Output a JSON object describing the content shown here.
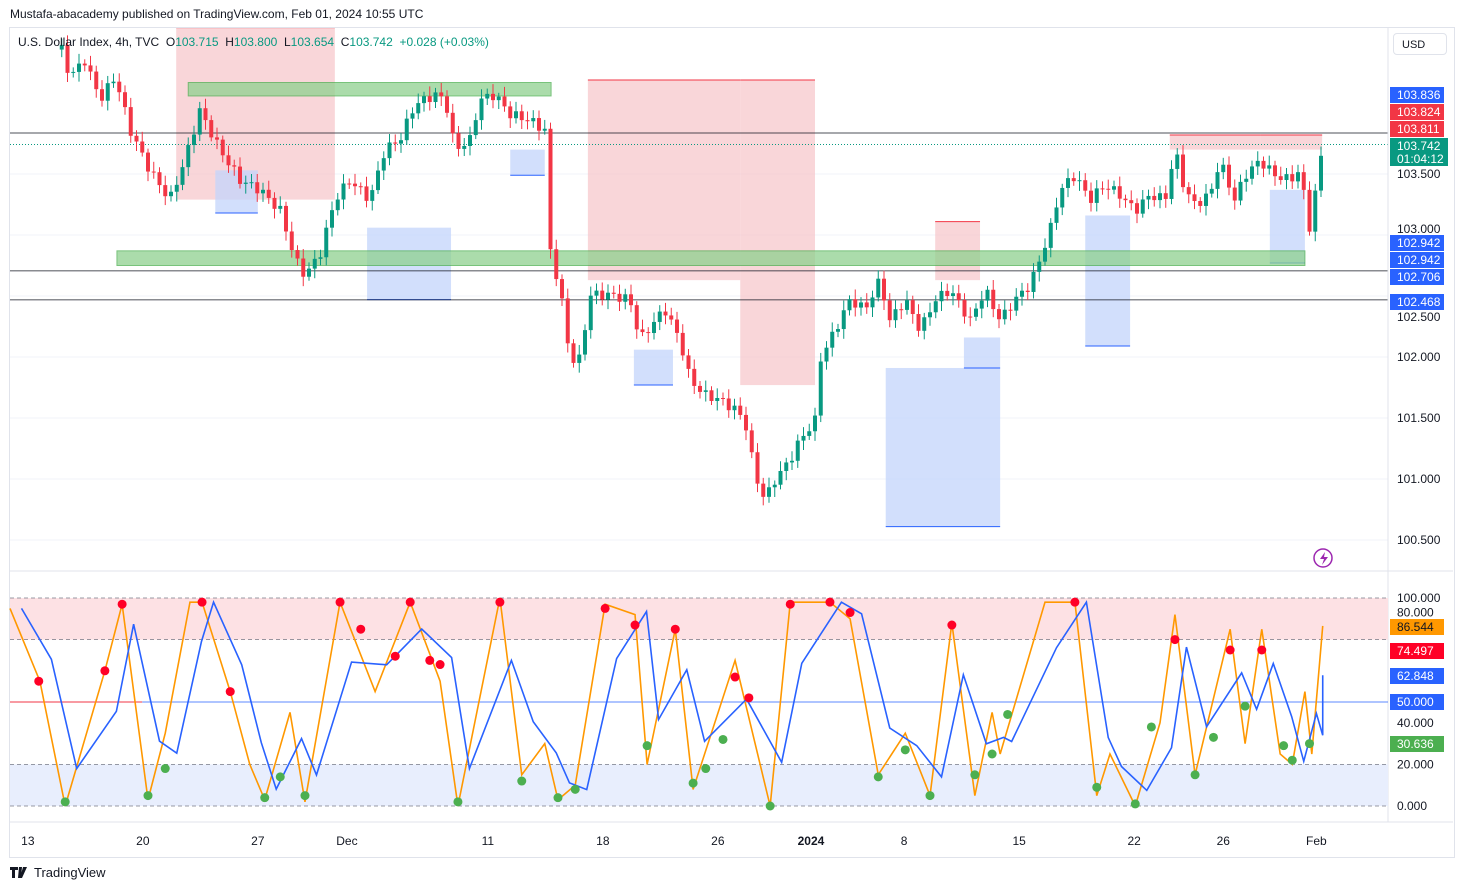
{
  "header": {
    "published": "Mustafa-abacademy published on TradingView.com, Feb 01, 2024 10:55 UTC",
    "symbol": "U.S. Dollar Index, 4h, TVC",
    "o_label": "O",
    "o": "103.715",
    "h_label": "H",
    "h": "103.800",
    "l_label": "L",
    "l": "103.654",
    "c_label": "C",
    "c": "103.742",
    "change": "+0.028 (+0.03%)"
  },
  "currency_button": "USD",
  "footer_brand": "TradingView",
  "colors": {
    "up": "#089981",
    "down": "#f23645",
    "pink_zone": "#f7c5c9",
    "blue_zone": "#c3d4fb",
    "green_zone": "#8fd18f",
    "fast": "#ff9800",
    "slow": "#2962ff"
  },
  "chart_data": [
    {
      "type": "candlestick",
      "title": "U.S. Dollar Index, 4h, TVC",
      "x_unit": "bar index (4h)",
      "ylim": [
        100.3,
        104.7
      ],
      "y_ticks": [
        "103.500",
        "103.000",
        "102.500",
        "102.000",
        "101.500",
        "101.000",
        "100.500"
      ],
      "y_tick_values": [
        103.5,
        103.0,
        102.5,
        102.0,
        101.5,
        101.0,
        100.5
      ],
      "x_ticks": [
        {
          "t": 3.1,
          "label": "13"
        },
        {
          "t": 23.1,
          "label": "20"
        },
        {
          "t": 43.1,
          "label": "27"
        },
        {
          "t": 58.6,
          "label": "Dec"
        },
        {
          "t": 83.1,
          "label": "11"
        },
        {
          "t": 103.1,
          "label": "18"
        },
        {
          "t": 123.1,
          "label": "26"
        },
        {
          "t": 139.3,
          "label": "2024",
          "bold": true
        },
        {
          "t": 155.5,
          "label": "8"
        },
        {
          "t": 175.5,
          "label": "15"
        },
        {
          "t": 195.5,
          "label": "22"
        },
        {
          "t": 211,
          "label": "26"
        },
        {
          "t": 227.2,
          "label": "Feb"
        }
      ],
      "price_path": [
        [
          9,
          104.52
        ],
        [
          10.4,
          104.3
        ],
        [
          13,
          104.43
        ],
        [
          15.7,
          104.11
        ],
        [
          18.3,
          104.3
        ],
        [
          20.9,
          103.86
        ],
        [
          24.3,
          103.53
        ],
        [
          27.8,
          103.29
        ],
        [
          30.4,
          103.61
        ],
        [
          33,
          104.02
        ],
        [
          36.5,
          103.7
        ],
        [
          40,
          103.45
        ],
        [
          43.5,
          103.37
        ],
        [
          47,
          103.2
        ],
        [
          49.6,
          102.8
        ],
        [
          51.3,
          102.67
        ],
        [
          53.9,
          102.84
        ],
        [
          56.5,
          103.29
        ],
        [
          59.1,
          103.45
        ],
        [
          62.6,
          103.29
        ],
        [
          65.2,
          103.7
        ],
        [
          67.8,
          103.78
        ],
        [
          70.4,
          104.07
        ],
        [
          73.9,
          104.15
        ],
        [
          75.7,
          104.11
        ],
        [
          77.4,
          103.7
        ],
        [
          80,
          103.78
        ],
        [
          81.7,
          104.11
        ],
        [
          84.3,
          104.15
        ],
        [
          87,
          103.99
        ],
        [
          90.4,
          103.94
        ],
        [
          93,
          103.86
        ],
        [
          93.9,
          102.88
        ],
        [
          95.7,
          102.55
        ],
        [
          97.4,
          101.98
        ],
        [
          99.1,
          101.98
        ],
        [
          100.9,
          102.51
        ],
        [
          104.3,
          102.51
        ],
        [
          107.8,
          102.47
        ],
        [
          109.6,
          102.14
        ],
        [
          112.2,
          102.3
        ],
        [
          113.9,
          102.39
        ],
        [
          116.5,
          102.14
        ],
        [
          118.3,
          101.81
        ],
        [
          120.9,
          101.69
        ],
        [
          123.5,
          101.65
        ],
        [
          126.1,
          101.57
        ],
        [
          127.8,
          101.48
        ],
        [
          129.6,
          101.03
        ],
        [
          131.3,
          100.83
        ],
        [
          133,
          100.99
        ],
        [
          135.7,
          101.16
        ],
        [
          137.4,
          101.32
        ],
        [
          140,
          101.48
        ],
        [
          140.9,
          101.98
        ],
        [
          143.5,
          102.22
        ],
        [
          146.1,
          102.47
        ],
        [
          148.7,
          102.39
        ],
        [
          151.3,
          102.63
        ],
        [
          153,
          102.3
        ],
        [
          155.7,
          102.47
        ],
        [
          158.3,
          102.22
        ],
        [
          160.9,
          102.47
        ],
        [
          163.5,
          102.55
        ],
        [
          167,
          102.3
        ],
        [
          169.6,
          102.55
        ],
        [
          172.2,
          102.3
        ],
        [
          174.8,
          102.47
        ],
        [
          177.4,
          102.59
        ],
        [
          179.1,
          102.8
        ],
        [
          180.9,
          103.04
        ],
        [
          182.6,
          103.37
        ],
        [
          185.2,
          103.49
        ],
        [
          187.8,
          103.29
        ],
        [
          190.4,
          103.41
        ],
        [
          193,
          103.33
        ],
        [
          195.7,
          103.2
        ],
        [
          198.3,
          103.33
        ],
        [
          200.9,
          103.29
        ],
        [
          202.6,
          103.7
        ],
        [
          204.3,
          103.37
        ],
        [
          206.1,
          103.25
        ],
        [
          208.7,
          103.33
        ],
        [
          210.4,
          103.61
        ],
        [
          213,
          103.29
        ],
        [
          214.8,
          103.49
        ],
        [
          217.4,
          103.61
        ],
        [
          220,
          103.49
        ],
        [
          222.6,
          103.45
        ],
        [
          224.3,
          103.53
        ],
        [
          226.1,
          103.04
        ],
        [
          227.8,
          103.61
        ],
        [
          228.7,
          103.742
        ]
      ],
      "zones_pink": [
        [
          28.9,
          56.5,
          104.7,
          103.29
        ],
        [
          100.5,
          127,
          104.27,
          102.63
        ],
        [
          127,
          140,
          104.27,
          101.77
        ],
        [
          160.9,
          168.7,
          103.11,
          102.63
        ],
        [
          201.7,
          217.4,
          103.82,
          103.7
        ],
        [
          217.4,
          228.2,
          103.82,
          103.7
        ]
      ],
      "zones_blue": [
        [
          35.7,
          43.1,
          103.53,
          103.18
        ],
        [
          62.1,
          76.7,
          103.06,
          102.47
        ],
        [
          87,
          93,
          103.7,
          103.49
        ],
        [
          108.5,
          115.3,
          102.06,
          101.77
        ],
        [
          152.3,
          172.2,
          101.91,
          100.61
        ],
        [
          165.9,
          172.2,
          102.16,
          101.91
        ],
        [
          187,
          194.8,
          103.16,
          102.09
        ],
        [
          219.1,
          225.2,
          103.37,
          102.77
        ]
      ],
      "zones_green": [
        [
          31,
          94.1,
          104.25,
          104.14
        ],
        [
          18.6,
          225.2,
          102.87,
          102.75
        ]
      ],
      "hlines": [
        103.836,
        102.706,
        102.468
      ],
      "last_price_line": 103.742,
      "price_badges": [
        {
          "label": "103.836",
          "color": "#2962ff"
        },
        {
          "label": "103.824",
          "color": "#f23645"
        },
        {
          "label": "103.811",
          "color": "#f23645"
        },
        {
          "label": "103.742",
          "color": "#089981",
          "timer": "01:04:12"
        },
        {
          "label": "102.942",
          "color": "#2962ff"
        },
        {
          "label": "102.942",
          "color": "#2962ff"
        },
        {
          "label": "102.706",
          "color": "#2962ff"
        },
        {
          "label": "102.468",
          "color": "#2962ff"
        }
      ]
    },
    {
      "type": "line",
      "title": "Stochastic oscillator",
      "ylim": [
        0,
        100
      ],
      "y_ticks": [
        "100.000",
        "80.000",
        "40.000",
        "20.000",
        "0.000"
      ],
      "y_tick_values": [
        100,
        80,
        40,
        20,
        0
      ],
      "bands": {
        "overbought": 80,
        "oversold": 20,
        "mid": 50
      },
      "slow_lag_bars": 2,
      "fast": [
        [
          0,
          95
        ],
        [
          5.2,
          60
        ],
        [
          9.6,
          0
        ],
        [
          16.5,
          65
        ],
        [
          19.5,
          97
        ],
        [
          24,
          3
        ],
        [
          27,
          35
        ],
        [
          31.3,
          98
        ],
        [
          33.4,
          98
        ],
        [
          38.3,
          55
        ],
        [
          41.7,
          20
        ],
        [
          44.3,
          3
        ],
        [
          48.7,
          45
        ],
        [
          51.3,
          2
        ],
        [
          57.4,
          98
        ],
        [
          63.5,
          55
        ],
        [
          69.6,
          98
        ],
        [
          74.8,
          60
        ],
        [
          77.9,
          0
        ],
        [
          85.2,
          100
        ],
        [
          89,
          15
        ],
        [
          93,
          30
        ],
        [
          95.3,
          3
        ],
        [
          98.3,
          10
        ],
        [
          103.5,
          97
        ],
        [
          108.7,
          92
        ],
        [
          110.8,
          20
        ],
        [
          115.7,
          85
        ],
        [
          118.8,
          8
        ],
        [
          126.1,
          70
        ],
        [
          132.2,
          0
        ],
        [
          135.7,
          98
        ],
        [
          142.6,
          98
        ],
        [
          146.1,
          90
        ],
        [
          151,
          15
        ],
        [
          155.7,
          35
        ],
        [
          160,
          5
        ],
        [
          163.8,
          88
        ],
        [
          167.8,
          5
        ],
        [
          170.8,
          45
        ],
        [
          172.2,
          25
        ],
        [
          180,
          98
        ],
        [
          185.2,
          98
        ],
        [
          189,
          5
        ],
        [
          191.3,
          25
        ],
        [
          195.7,
          0
        ],
        [
          200,
          40
        ],
        [
          202.6,
          92
        ],
        [
          206.1,
          15
        ],
        [
          212.2,
          85
        ],
        [
          214.8,
          30
        ],
        [
          217.7,
          85
        ],
        [
          220.9,
          25
        ],
        [
          223,
          20
        ],
        [
          225.2,
          55
        ],
        [
          226.4,
          25
        ],
        [
          228.3,
          86.544
        ]
      ],
      "markers_red": [
        [
          5,
          60
        ],
        [
          16.5,
          65
        ],
        [
          19.5,
          97
        ],
        [
          33.4,
          98
        ],
        [
          38.3,
          55
        ],
        [
          57.4,
          98
        ],
        [
          61,
          85
        ],
        [
          67,
          72
        ],
        [
          69.6,
          98
        ],
        [
          73,
          70
        ],
        [
          74.8,
          68
        ],
        [
          85.2,
          98
        ],
        [
          103.5,
          95
        ],
        [
          108.7,
          87
        ],
        [
          115.7,
          85
        ],
        [
          126.1,
          62
        ],
        [
          128.5,
          52
        ],
        [
          135.7,
          97
        ],
        [
          142.6,
          98
        ],
        [
          146.1,
          93
        ],
        [
          163.8,
          87
        ],
        [
          185.2,
          98
        ],
        [
          202.6,
          80
        ],
        [
          212.2,
          75
        ],
        [
          217.7,
          75
        ]
      ],
      "markers_green": [
        [
          9.6,
          2
        ],
        [
          24,
          5
        ],
        [
          27,
          18
        ],
        [
          44.3,
          4
        ],
        [
          47,
          14
        ],
        [
          51.3,
          5
        ],
        [
          77.9,
          2
        ],
        [
          89,
          12
        ],
        [
          95.3,
          4
        ],
        [
          98.3,
          8
        ],
        [
          110.8,
          29
        ],
        [
          118.8,
          11
        ],
        [
          121,
          18
        ],
        [
          124,
          32
        ],
        [
          132.2,
          0
        ],
        [
          151,
          14
        ],
        [
          155.7,
          27
        ],
        [
          160,
          5
        ],
        [
          167.8,
          15
        ],
        [
          170.8,
          25
        ],
        [
          173.5,
          44
        ],
        [
          189,
          9
        ],
        [
          195.7,
          1
        ],
        [
          198.5,
          38
        ],
        [
          206.1,
          15
        ],
        [
          209.3,
          33
        ],
        [
          214.8,
          48
        ],
        [
          221.5,
          29
        ],
        [
          223,
          22
        ],
        [
          226,
          30
        ]
      ],
      "value_badges": [
        {
          "label": "86.544",
          "color": "#ff9800",
          "text": "#131722"
        },
        {
          "label": "74.497",
          "color": "#ff0026",
          "text": "#ffffff"
        },
        {
          "label": "62.848",
          "color": "#2962ff",
          "text": "#ffffff"
        },
        {
          "label": "50.000",
          "color": "#2962ff",
          "text": "#ffffff"
        },
        {
          "label": "30.636",
          "color": "#4caf50",
          "text": "#ffffff"
        }
      ]
    }
  ]
}
